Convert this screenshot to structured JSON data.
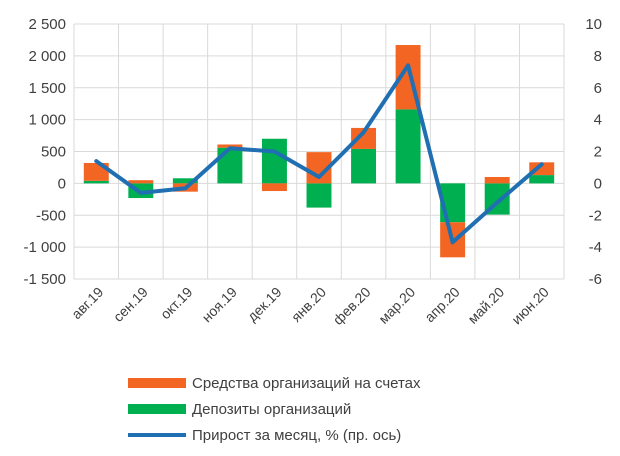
{
  "chart_data": {
    "type": "bar",
    "categories": [
      "авг.19",
      "сен.19",
      "окт.19",
      "ноя.19",
      "дек.19",
      "янв.20",
      "фев.20",
      "мар.20",
      "апр.20",
      "май.20",
      "июн.20"
    ],
    "series": [
      {
        "name": "Средства организаций на счетах",
        "kind": "bar",
        "axis": "left",
        "color": "#F26522",
        "values": [
          280,
          50,
          -130,
          50,
          -120,
          490,
          330,
          1010,
          -550,
          100,
          200
        ]
      },
      {
        "name": "Депозиты организаций",
        "kind": "bar",
        "axis": "left",
        "color": "#00B050",
        "values": [
          40,
          -230,
          80,
          560,
          700,
          -380,
          540,
          1160,
          -610,
          -490,
          130
        ]
      },
      {
        "name": "Прирост за месяц, % (пр. ось)",
        "kind": "line",
        "axis": "right",
        "color": "#1F6FB2",
        "values": [
          1.4,
          -0.6,
          -0.3,
          2.2,
          2.0,
          0.4,
          3.2,
          7.4,
          -3.7,
          -1.2,
          1.2
        ]
      }
    ],
    "ylim_left": [
      -1500,
      2500
    ],
    "yticks_left": [
      "2 500",
      "2 000",
      "1 500",
      "1 000",
      "500",
      "0",
      "-500",
      "-1 000",
      "-1 500"
    ],
    "ylim_right": [
      -6,
      10
    ],
    "yticks_right": [
      "10",
      "8",
      "6",
      "4",
      "2",
      "0",
      "-2",
      "-4",
      "-6"
    ],
    "stacked": true,
    "grid": true,
    "legend_position": "bottom"
  }
}
